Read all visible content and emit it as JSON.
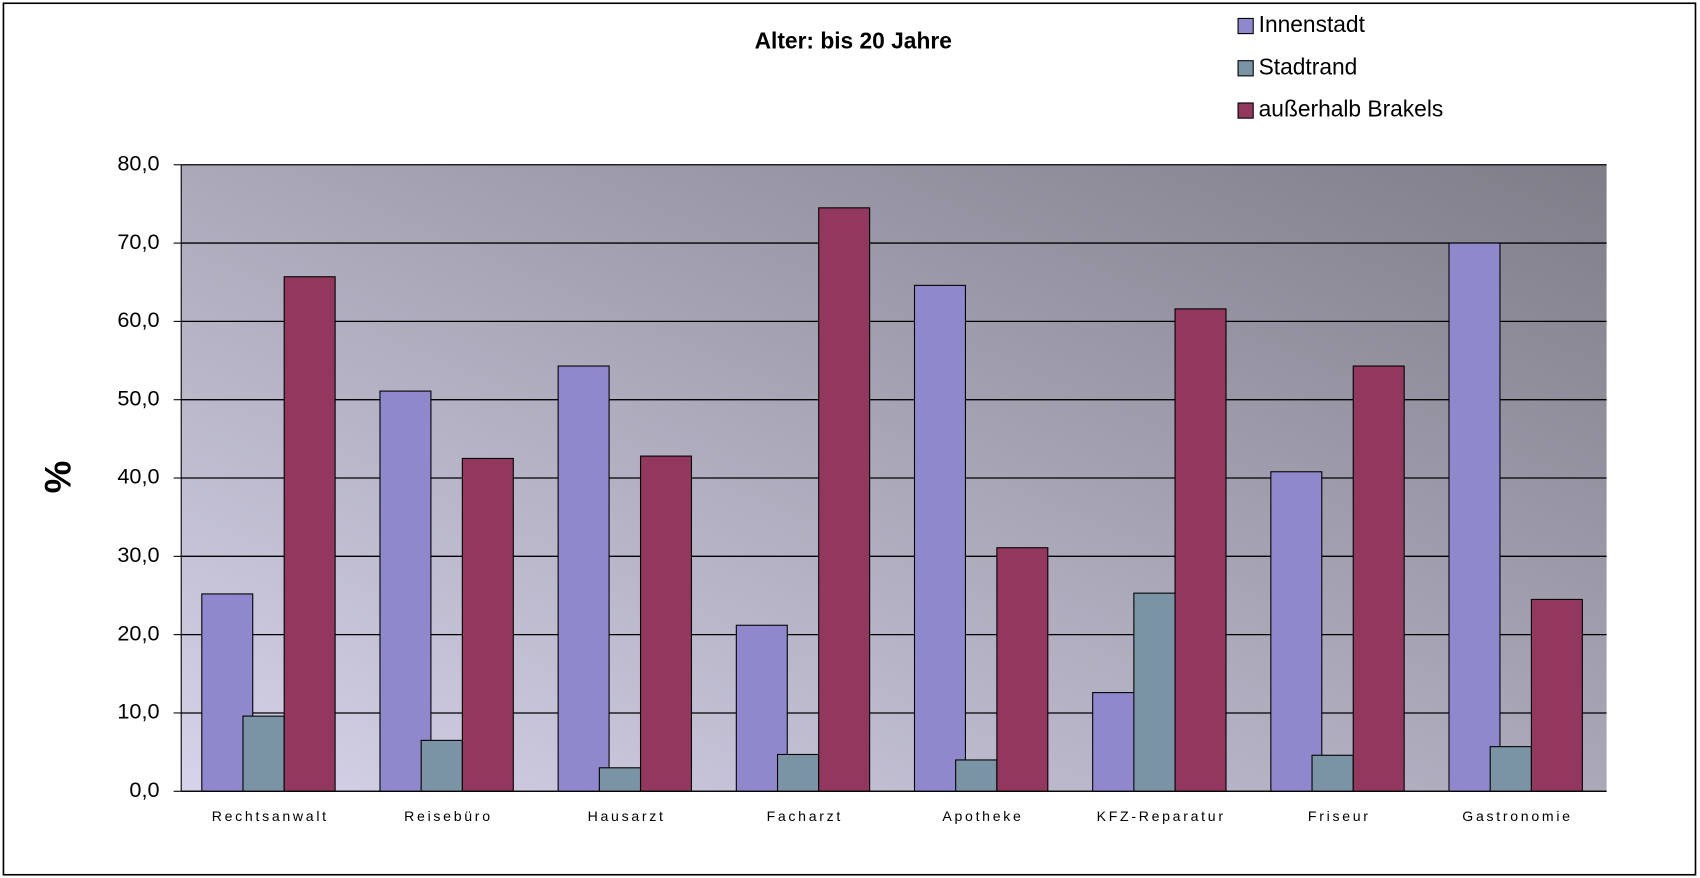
{
  "chart_data": {
    "type": "bar",
    "title": "Alter: bis 20 Jahre",
    "y_label": "%",
    "categories": [
      "Rechtsanwalt",
      "Reisebüro",
      "Hausarzt",
      "Facharzt",
      "Apotheke",
      "KFZ-Reparatur",
      "Friseur",
      "Gastronomie"
    ],
    "series": [
      {
        "name": "Innenstadt",
        "color": "#9088cc",
        "values": [
          25.2,
          51.1,
          54.3,
          21.2,
          64.6,
          12.6,
          40.8,
          70.0
        ]
      },
      {
        "name": "Stadtrand",
        "color": "#7a93a5",
        "values": [
          9.6,
          6.5,
          3.0,
          4.7,
          4.0,
          25.3,
          4.6,
          5.7
        ]
      },
      {
        "name": "außerhalb Brakels",
        "color": "#92375d",
        "values": [
          65.7,
          42.5,
          42.8,
          74.5,
          31.1,
          61.6,
          54.3,
          24.5
        ]
      }
    ],
    "ylim": [
      0,
      80
    ],
    "yticks": [
      {
        "value": 0,
        "label": "0,0"
      },
      {
        "value": 10,
        "label": "10,0"
      },
      {
        "value": 20,
        "label": "20,0"
      },
      {
        "value": 30,
        "label": "30,0"
      },
      {
        "value": 40,
        "label": "40,0"
      },
      {
        "value": 50,
        "label": "50,0"
      },
      {
        "value": 60,
        "label": "60,0"
      },
      {
        "value": 70,
        "label": "70,0"
      },
      {
        "value": 80,
        "label": "80,0"
      }
    ],
    "grid": true,
    "legend": "top-right"
  }
}
